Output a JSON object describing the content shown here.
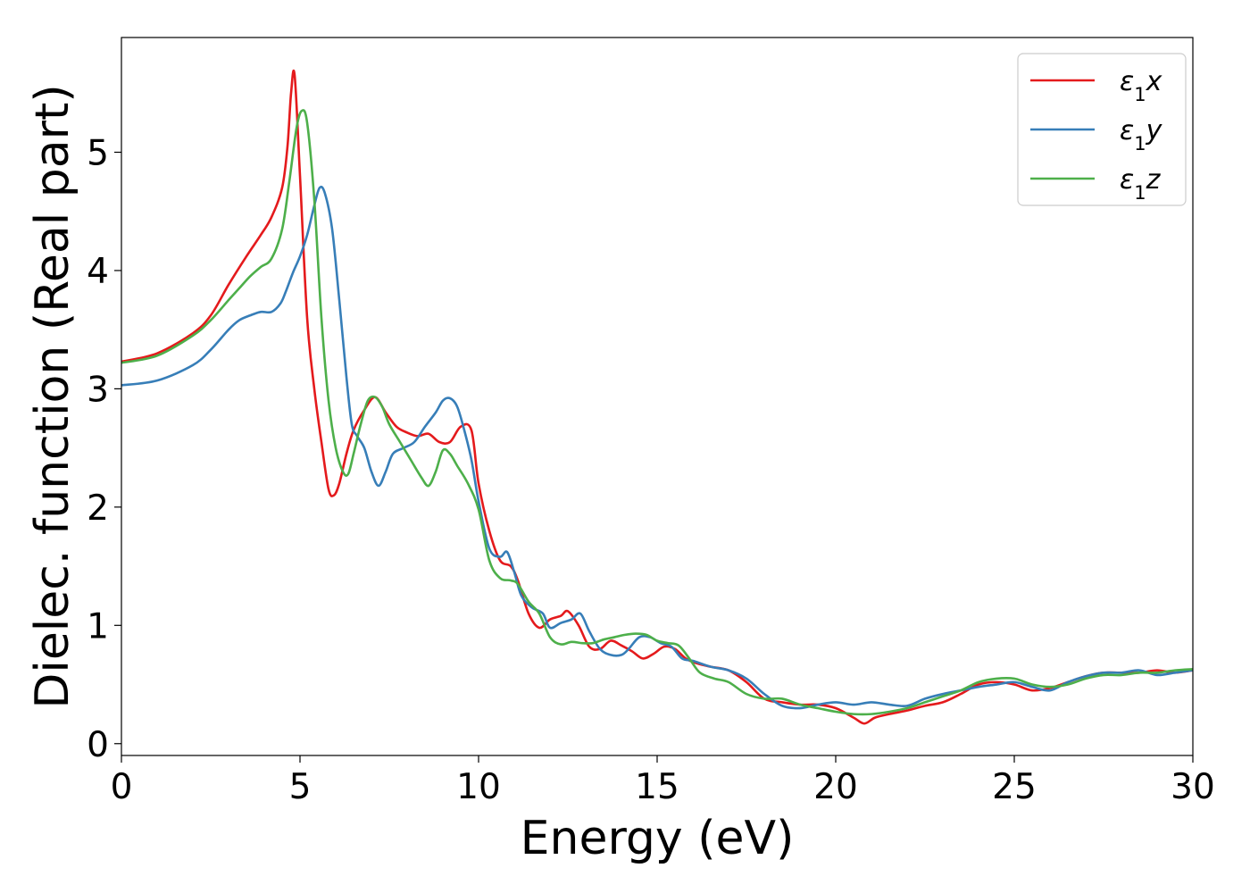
{
  "chart_data": {
    "type": "line",
    "xlabel": "Energy (eV)",
    "ylabel": "Dielec. function (Real part)",
    "xlim": [
      0,
      30
    ],
    "ylim": [
      -0.1,
      5.97
    ],
    "xticks": [
      0,
      5,
      10,
      15,
      20,
      25,
      30
    ],
    "xtick_labels": [
      "0",
      "5",
      "10",
      "15",
      "20",
      "25",
      "30"
    ],
    "yticks": [
      0,
      1,
      2,
      3,
      4,
      5
    ],
    "ytick_labels": [
      "0",
      "1",
      "2",
      "3",
      "4",
      "5"
    ],
    "grid": false,
    "legend_position": "top-right",
    "series": [
      {
        "name": "ε₁x",
        "legend_base": "ε",
        "legend_sub": "1",
        "legend_var": "x",
        "color": "#e41a1c",
        "x": [
          0,
          1,
          2,
          2.5,
          3,
          3.5,
          3.9,
          4.2,
          4.5,
          4.65,
          4.75,
          4.85,
          5.0,
          5.2,
          5.4,
          5.6,
          5.8,
          5.95,
          6.1,
          6.3,
          6.5,
          6.8,
          7.1,
          7.4,
          7.7,
          8.0,
          8.3,
          8.6,
          8.9,
          9.2,
          9.5,
          9.8,
          10.0,
          10.3,
          10.6,
          10.9,
          11.1,
          11.4,
          11.7,
          12.0,
          12.3,
          12.5,
          12.8,
          13.1,
          13.4,
          13.7,
          14.0,
          14.3,
          14.6,
          14.9,
          15.2,
          15.5,
          15.8,
          16.1,
          16.5,
          17.0,
          17.5,
          18.0,
          18.5,
          19.0,
          19.5,
          20.0,
          20.5,
          20.8,
          21.1,
          21.5,
          22.0,
          22.5,
          23.0,
          23.5,
          24.0,
          24.5,
          25.0,
          25.5,
          26.0,
          26.5,
          27.0,
          27.5,
          28.0,
          28.5,
          29.0,
          29.5,
          30.0
        ],
        "values": [
          3.23,
          3.3,
          3.47,
          3.62,
          3.88,
          4.12,
          4.3,
          4.45,
          4.7,
          5.05,
          5.5,
          5.65,
          4.8,
          3.6,
          3.0,
          2.55,
          2.15,
          2.1,
          2.2,
          2.45,
          2.65,
          2.82,
          2.93,
          2.8,
          2.68,
          2.63,
          2.6,
          2.62,
          2.55,
          2.55,
          2.68,
          2.65,
          2.2,
          1.8,
          1.55,
          1.5,
          1.38,
          1.1,
          0.98,
          1.05,
          1.08,
          1.12,
          1.0,
          0.82,
          0.8,
          0.87,
          0.83,
          0.78,
          0.72,
          0.76,
          0.82,
          0.8,
          0.72,
          0.68,
          0.65,
          0.62,
          0.52,
          0.38,
          0.35,
          0.33,
          0.33,
          0.3,
          0.22,
          0.17,
          0.22,
          0.25,
          0.28,
          0.32,
          0.35,
          0.42,
          0.5,
          0.52,
          0.5,
          0.45,
          0.47,
          0.52,
          0.57,
          0.6,
          0.6,
          0.6,
          0.62,
          0.6,
          0.62
        ]
      },
      {
        "name": "ε₁y",
        "legend_base": "ε",
        "legend_sub": "1",
        "legend_var": "y",
        "color": "#377eb8",
        "x": [
          0,
          1,
          2,
          2.5,
          3,
          3.3,
          3.6,
          3.9,
          4.2,
          4.45,
          4.6,
          4.8,
          5.0,
          5.2,
          5.4,
          5.55,
          5.7,
          5.9,
          6.1,
          6.3,
          6.45,
          6.6,
          6.8,
          7.0,
          7.2,
          7.4,
          7.6,
          7.9,
          8.2,
          8.5,
          8.8,
          9.0,
          9.2,
          9.4,
          9.6,
          9.8,
          10.0,
          10.3,
          10.6,
          10.8,
          11.0,
          11.2,
          11.5,
          11.8,
          12.0,
          12.3,
          12.6,
          12.85,
          13.1,
          13.4,
          13.7,
          14.0,
          14.2,
          14.5,
          14.8,
          15.1,
          15.4,
          15.7,
          16.0,
          16.5,
          17.0,
          17.5,
          18.0,
          18.5,
          19.0,
          19.5,
          20.0,
          20.5,
          21.0,
          21.5,
          22.0,
          22.5,
          23.0,
          23.5,
          24.0,
          24.5,
          25.0,
          25.5,
          26.0,
          26.5,
          27.0,
          27.5,
          28.0,
          28.5,
          29.0,
          29.5,
          30.0
        ],
        "values": [
          3.03,
          3.07,
          3.2,
          3.33,
          3.5,
          3.58,
          3.62,
          3.65,
          3.65,
          3.72,
          3.82,
          3.98,
          4.12,
          4.3,
          4.55,
          4.7,
          4.65,
          4.35,
          3.75,
          3.1,
          2.7,
          2.6,
          2.5,
          2.3,
          2.18,
          2.3,
          2.45,
          2.5,
          2.55,
          2.68,
          2.8,
          2.9,
          2.92,
          2.85,
          2.65,
          2.4,
          2.05,
          1.65,
          1.58,
          1.62,
          1.45,
          1.25,
          1.15,
          1.1,
          0.98,
          1.02,
          1.05,
          1.1,
          0.95,
          0.8,
          0.75,
          0.75,
          0.8,
          0.9,
          0.9,
          0.85,
          0.82,
          0.72,
          0.7,
          0.65,
          0.62,
          0.55,
          0.42,
          0.32,
          0.3,
          0.33,
          0.35,
          0.33,
          0.35,
          0.33,
          0.32,
          0.38,
          0.42,
          0.45,
          0.48,
          0.5,
          0.52,
          0.48,
          0.45,
          0.52,
          0.57,
          0.6,
          0.6,
          0.62,
          0.58,
          0.6,
          0.62
        ]
      },
      {
        "name": "ε₁z",
        "legend_base": "ε",
        "legend_sub": "1",
        "legend_var": "z",
        "color": "#4daf4a",
        "x": [
          0,
          1,
          2,
          2.5,
          3,
          3.3,
          3.6,
          3.9,
          4.2,
          4.5,
          4.7,
          4.9,
          5.05,
          5.2,
          5.4,
          5.6,
          5.8,
          6.0,
          6.2,
          6.35,
          6.5,
          6.7,
          6.9,
          7.1,
          7.3,
          7.5,
          7.8,
          8.1,
          8.4,
          8.6,
          8.8,
          9.0,
          9.2,
          9.4,
          9.7,
          10.0,
          10.3,
          10.6,
          10.9,
          11.1,
          11.4,
          11.7,
          12.0,
          12.3,
          12.6,
          12.9,
          13.2,
          13.5,
          13.8,
          14.1,
          14.4,
          14.7,
          15.0,
          15.3,
          15.6,
          15.9,
          16.2,
          16.6,
          17.0,
          17.5,
          18.0,
          18.5,
          19.0,
          19.5,
          20.0,
          20.5,
          21.0,
          21.5,
          22.0,
          22.5,
          23.0,
          23.5,
          24.0,
          24.5,
          25.0,
          25.5,
          26.0,
          26.5,
          27.0,
          27.5,
          28.0,
          28.5,
          29.0,
          29.5,
          30.0
        ],
        "values": [
          3.22,
          3.28,
          3.45,
          3.58,
          3.75,
          3.85,
          3.95,
          4.03,
          4.1,
          4.35,
          4.75,
          5.2,
          5.35,
          5.25,
          4.6,
          3.6,
          2.9,
          2.5,
          2.3,
          2.28,
          2.45,
          2.7,
          2.9,
          2.93,
          2.85,
          2.7,
          2.55,
          2.4,
          2.25,
          2.18,
          2.3,
          2.48,
          2.45,
          2.35,
          2.2,
          1.98,
          1.55,
          1.4,
          1.38,
          1.35,
          1.2,
          1.1,
          0.9,
          0.84,
          0.86,
          0.85,
          0.85,
          0.88,
          0.9,
          0.92,
          0.93,
          0.92,
          0.87,
          0.85,
          0.83,
          0.72,
          0.6,
          0.55,
          0.52,
          0.42,
          0.38,
          0.38,
          0.33,
          0.3,
          0.27,
          0.25,
          0.25,
          0.27,
          0.3,
          0.35,
          0.4,
          0.45,
          0.52,
          0.55,
          0.55,
          0.5,
          0.48,
          0.5,
          0.55,
          0.58,
          0.58,
          0.6,
          0.6,
          0.62,
          0.63
        ]
      }
    ]
  }
}
